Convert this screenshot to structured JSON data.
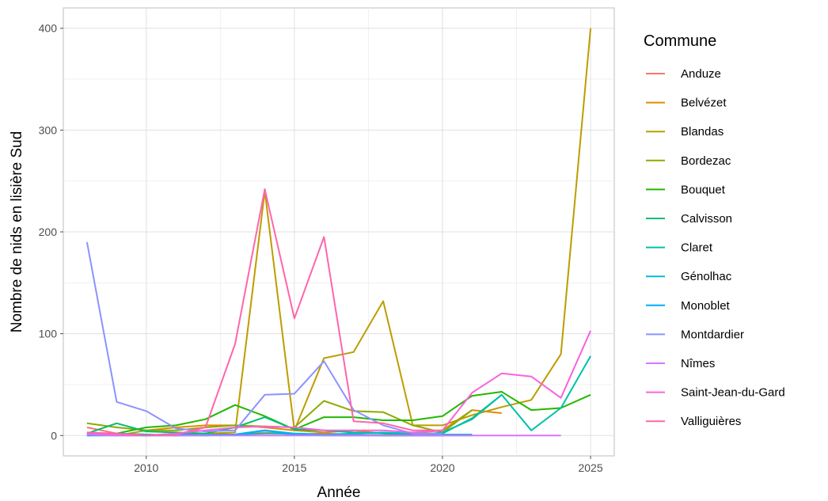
{
  "chart_data": {
    "type": "line",
    "title": "",
    "xlabel": "Année",
    "ylabel": "Nombre de nids en lisière Sud",
    "xlim": [
      2007.2,
      2025.8
    ],
    "ylim": [
      -20,
      420
    ],
    "x_ticks": [
      2010,
      2015,
      2020,
      2025
    ],
    "y_ticks": [
      0,
      100,
      200,
      300,
      400
    ],
    "grid": true,
    "legend_title": "Commune",
    "legend_position": "right",
    "series": [
      {
        "name": "Anduze",
        "color": "#F8766D",
        "points": [
          [
            2008,
            8
          ],
          [
            2009,
            2
          ],
          [
            2010,
            1
          ],
          [
            2011,
            0
          ],
          [
            2012,
            2
          ],
          [
            2013,
            1
          ],
          [
            2014,
            3
          ],
          [
            2015,
            1
          ],
          [
            2016,
            2
          ],
          [
            2017,
            1
          ],
          [
            2018,
            0
          ],
          [
            2019,
            0
          ],
          [
            2020,
            0
          ],
          [
            2021,
            0
          ]
        ]
      },
      {
        "name": "Belvézet",
        "color": "#E18A00",
        "points": [
          [
            2008,
            2
          ],
          [
            2009,
            0
          ],
          [
            2010,
            5
          ],
          [
            2011,
            8
          ],
          [
            2012,
            10
          ],
          [
            2013,
            10
          ],
          [
            2014,
            8
          ],
          [
            2015,
            5
          ],
          [
            2016,
            3
          ],
          [
            2017,
            5
          ],
          [
            2018,
            2
          ],
          [
            2019,
            2
          ],
          [
            2020,
            5
          ],
          [
            2021,
            25
          ],
          [
            2022,
            22
          ]
        ]
      },
      {
        "name": "Blandas",
        "color": "#BE9C00",
        "points": [
          [
            2008,
            3
          ],
          [
            2009,
            1
          ],
          [
            2010,
            0
          ],
          [
            2011,
            1
          ],
          [
            2012,
            2
          ],
          [
            2013,
            3
          ],
          [
            2014,
            240
          ],
          [
            2015,
            5
          ],
          [
            2016,
            76
          ],
          [
            2017,
            82
          ],
          [
            2018,
            132
          ],
          [
            2019,
            10
          ],
          [
            2020,
            10
          ],
          [
            2021,
            20
          ],
          [
            2022,
            28
          ],
          [
            2023,
            35
          ],
          [
            2024,
            80
          ],
          [
            2025,
            400
          ]
        ]
      },
      {
        "name": "Bordezac",
        "color": "#8CAB00",
        "points": [
          [
            2008,
            12
          ],
          [
            2009,
            8
          ],
          [
            2010,
            5
          ],
          [
            2011,
            5
          ],
          [
            2012,
            8
          ],
          [
            2013,
            10
          ],
          [
            2014,
            9
          ],
          [
            2015,
            8
          ],
          [
            2016,
            34
          ],
          [
            2017,
            24
          ],
          [
            2018,
            23
          ],
          [
            2019,
            10
          ],
          [
            2020,
            3
          ],
          [
            2021,
            25
          ]
        ]
      },
      {
        "name": "Bouquet",
        "color": "#24B700",
        "points": [
          [
            2008,
            2
          ],
          [
            2009,
            2
          ],
          [
            2010,
            8
          ],
          [
            2011,
            10
          ],
          [
            2012,
            16
          ],
          [
            2013,
            30
          ],
          [
            2014,
            19
          ],
          [
            2015,
            6
          ],
          [
            2016,
            18
          ],
          [
            2017,
            18
          ],
          [
            2018,
            15
          ],
          [
            2019,
            15
          ],
          [
            2020,
            19
          ],
          [
            2021,
            39
          ],
          [
            2022,
            43
          ],
          [
            2023,
            25
          ],
          [
            2024,
            27
          ],
          [
            2025,
            40
          ]
        ]
      },
      {
        "name": "Calvisson",
        "color": "#00BE70",
        "points": [
          [
            2008,
            2
          ],
          [
            2009,
            12
          ],
          [
            2010,
            4
          ],
          [
            2011,
            3
          ],
          [
            2012,
            2
          ],
          [
            2013,
            8
          ],
          [
            2014,
            18
          ],
          [
            2015,
            6
          ],
          [
            2016,
            5
          ],
          [
            2017,
            3
          ],
          [
            2018,
            2
          ],
          [
            2019,
            1
          ],
          [
            2020,
            2
          ],
          [
            2021,
            17
          ],
          [
            2022,
            40
          ]
        ]
      },
      {
        "name": "Claret",
        "color": "#00C1AB",
        "points": [
          [
            2008,
            1
          ],
          [
            2009,
            2
          ],
          [
            2010,
            1
          ],
          [
            2011,
            0
          ],
          [
            2012,
            1
          ],
          [
            2013,
            1
          ],
          [
            2014,
            2
          ],
          [
            2015,
            2
          ],
          [
            2016,
            1
          ],
          [
            2017,
            1
          ],
          [
            2018,
            0
          ],
          [
            2019,
            0
          ],
          [
            2020,
            3
          ],
          [
            2021,
            16
          ],
          [
            2022,
            40
          ],
          [
            2023,
            5
          ],
          [
            2024,
            27
          ],
          [
            2025,
            78
          ]
        ]
      },
      {
        "name": "Génolhac",
        "color": "#00BBDA",
        "points": [
          [
            2008,
            0
          ],
          [
            2009,
            1
          ],
          [
            2010,
            0
          ],
          [
            2011,
            0
          ],
          [
            2012,
            0
          ],
          [
            2013,
            1
          ],
          [
            2014,
            5
          ],
          [
            2015,
            2
          ],
          [
            2016,
            1
          ],
          [
            2017,
            2
          ],
          [
            2018,
            3
          ],
          [
            2019,
            2
          ],
          [
            2020,
            1
          ],
          [
            2021,
            1
          ]
        ]
      },
      {
        "name": "Monoblet",
        "color": "#00ACFC",
        "points": [
          [
            2008,
            0
          ],
          [
            2009,
            0
          ],
          [
            2010,
            0
          ],
          [
            2011,
            2
          ],
          [
            2012,
            0
          ],
          [
            2013,
            1
          ],
          [
            2014,
            5
          ],
          [
            2015,
            1
          ],
          [
            2016,
            0
          ],
          [
            2017,
            0
          ],
          [
            2018,
            0
          ],
          [
            2019,
            0
          ],
          [
            2020,
            0
          ]
        ]
      },
      {
        "name": "Montdardier",
        "color": "#8B93FF",
        "points": [
          [
            2008,
            190
          ],
          [
            2009,
            33
          ],
          [
            2010,
            24
          ],
          [
            2011,
            7
          ],
          [
            2012,
            4
          ],
          [
            2013,
            5
          ],
          [
            2014,
            40
          ],
          [
            2015,
            41
          ],
          [
            2016,
            73
          ],
          [
            2017,
            25
          ],
          [
            2018,
            10
          ],
          [
            2019,
            2
          ],
          [
            2020,
            2
          ]
        ]
      },
      {
        "name": "Nîmes",
        "color": "#D575FE",
        "points": [
          [
            2008,
            1
          ],
          [
            2009,
            0
          ],
          [
            2010,
            0
          ],
          [
            2011,
            0
          ],
          [
            2012,
            0
          ],
          [
            2013,
            0
          ],
          [
            2014,
            0
          ],
          [
            2015,
            0
          ],
          [
            2016,
            0
          ],
          [
            2017,
            0
          ],
          [
            2018,
            0
          ],
          [
            2019,
            0
          ],
          [
            2020,
            0
          ],
          [
            2021,
            0
          ],
          [
            2022,
            0
          ],
          [
            2023,
            0
          ],
          [
            2024,
            0
          ]
        ]
      },
      {
        "name": "Saint-Jean-du-Gard",
        "color": "#F962DD",
        "points": [
          [
            2008,
            2
          ],
          [
            2009,
            1
          ],
          [
            2010,
            0
          ],
          [
            2011,
            2
          ],
          [
            2012,
            5
          ],
          [
            2013,
            8
          ],
          [
            2014,
            9
          ],
          [
            2015,
            8
          ],
          [
            2016,
            5
          ],
          [
            2017,
            5
          ],
          [
            2018,
            5
          ],
          [
            2019,
            3
          ],
          [
            2020,
            5
          ],
          [
            2021,
            42
          ],
          [
            2022,
            61
          ],
          [
            2023,
            58
          ],
          [
            2024,
            37
          ],
          [
            2025,
            103
          ]
        ]
      },
      {
        "name": "Valliguières",
        "color": "#FF65AC",
        "points": [
          [
            2008,
            3
          ],
          [
            2009,
            2
          ],
          [
            2010,
            0
          ],
          [
            2011,
            1
          ],
          [
            2012,
            8
          ],
          [
            2013,
            90
          ],
          [
            2014,
            242
          ],
          [
            2015,
            115
          ],
          [
            2016,
            195
          ],
          [
            2017,
            14
          ],
          [
            2018,
            12
          ],
          [
            2019,
            5
          ],
          [
            2020,
            5
          ]
        ]
      }
    ]
  }
}
